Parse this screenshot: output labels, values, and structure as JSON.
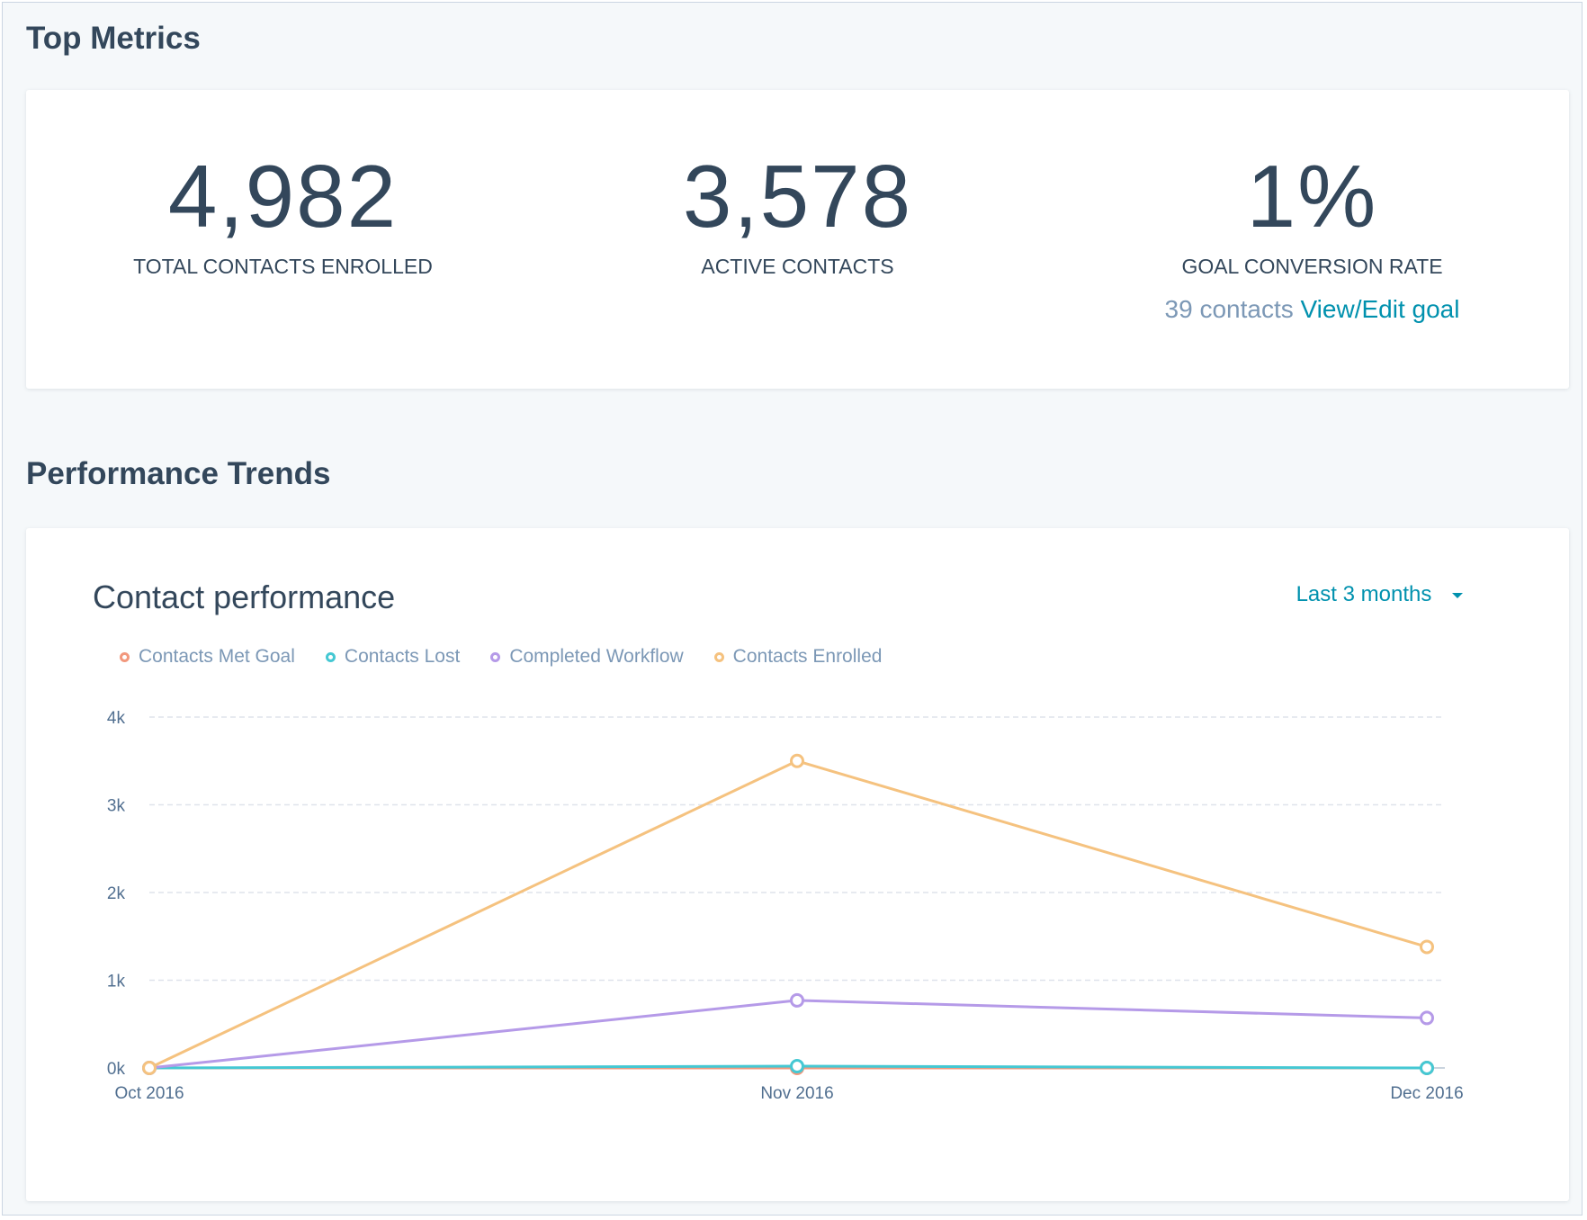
{
  "top_metrics": {
    "title": "Top Metrics",
    "items": [
      {
        "value": "4,982",
        "label": "TOTAL CONTACTS ENROLLED"
      },
      {
        "value": "3,578",
        "label": "ACTIVE CONTACTS"
      },
      {
        "value": "1%",
        "label": "GOAL CONVERSION RATE",
        "sub_text": "39 contacts",
        "sub_link": "View/Edit goal"
      }
    ]
  },
  "performance": {
    "title": "Performance Trends",
    "chart_title": "Contact performance",
    "range_label": "Last 3 months"
  },
  "chart_data": {
    "type": "line",
    "title": "Contact performance",
    "x": [
      "Oct 2016",
      "Nov 2016",
      "Dec 2016"
    ],
    "y_ticks": [
      "0k",
      "1k",
      "2k",
      "3k",
      "4k"
    ],
    "ylim": [
      0,
      4000
    ],
    "grid": true,
    "legend_position": "top-left",
    "series": [
      {
        "name": "Contacts Met Goal",
        "color": "#f2987d",
        "values": [
          0,
          0,
          0
        ]
      },
      {
        "name": "Contacts Lost",
        "color": "#45c8d3",
        "values": [
          0,
          20,
          0
        ]
      },
      {
        "name": "Completed Workflow",
        "color": "#b59ae8",
        "values": [
          0,
          770,
          570
        ]
      },
      {
        "name": "Contacts Enrolled",
        "color": "#f5c27f",
        "values": [
          0,
          3500,
          1380
        ]
      }
    ]
  }
}
